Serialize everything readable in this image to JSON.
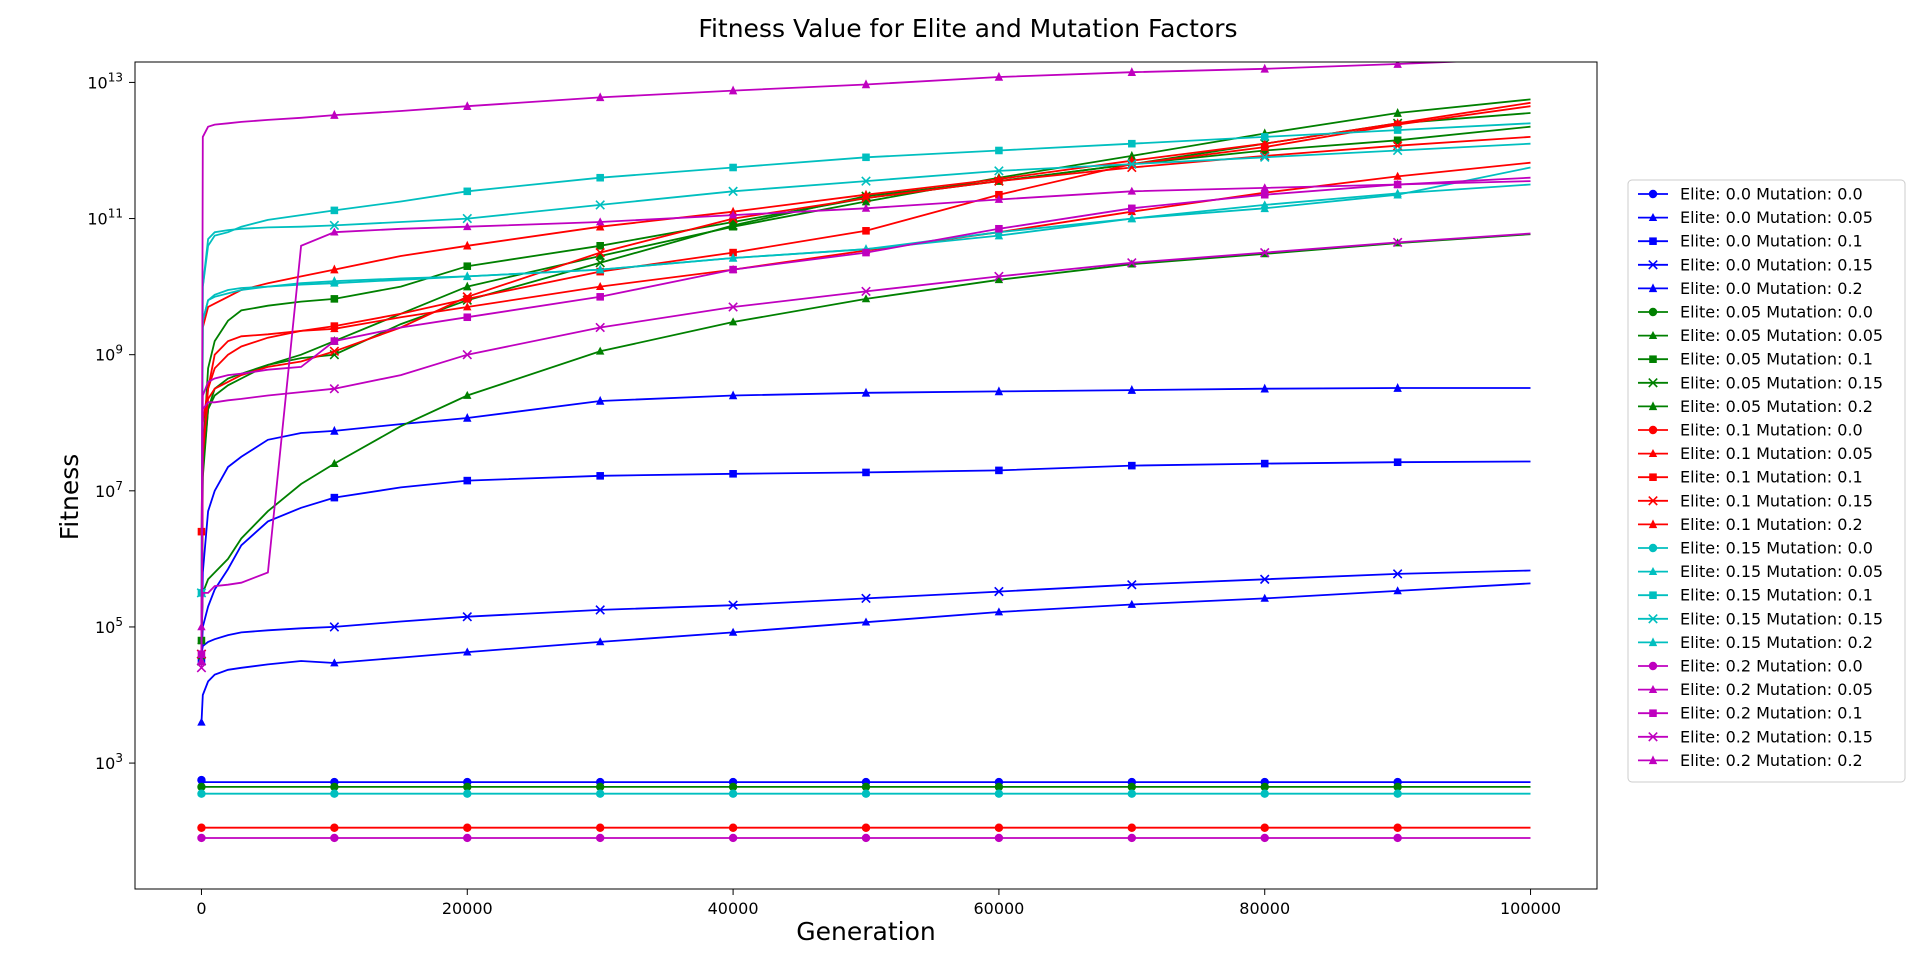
{
  "chart_data": {
    "type": "line",
    "title": "Fitness Value for Elite and Mutation Factors",
    "xlabel": "Generation",
    "ylabel": "Fitness",
    "yscale": "log",
    "xlim": [
      -5000,
      105000
    ],
    "ylim_log10": [
      1.15,
      13.3
    ],
    "x_ticks": [
      0,
      20000,
      40000,
      60000,
      80000,
      100000
    ],
    "x_tick_labels": [
      "0",
      "20000",
      "40000",
      "60000",
      "80000",
      "100000"
    ],
    "y_ticks_log10": [
      3,
      5,
      7,
      9,
      11,
      13
    ],
    "y_tick_labels": [
      {
        "base": "10",
        "exp": "3"
      },
      {
        "base": "10",
        "exp": "5"
      },
      {
        "base": "10",
        "exp": "7"
      },
      {
        "base": "10",
        "exp": "9"
      },
      {
        "base": "10",
        "exp": "11"
      },
      {
        "base": "10",
        "exp": "13"
      }
    ],
    "grid": false,
    "legend_position": "right, outside plot",
    "x": [
      0,
      100,
      500,
      1000,
      2000,
      3000,
      5000,
      7500,
      10000,
      15000,
      20000,
      30000,
      40000,
      50000,
      60000,
      70000,
      80000,
      90000,
      100000
    ],
    "series": [
      {
        "name": "Elite: 0.0 Mutation: 0.0",
        "color": "#0000ff",
        "marker": "circle",
        "log10": [
          2.75,
          2.72,
          2.72,
          2.72,
          2.72,
          2.72,
          2.72,
          2.72,
          2.72,
          2.72,
          2.72,
          2.72,
          2.72,
          2.72,
          2.72,
          2.72,
          2.72,
          2.72,
          2.72
        ]
      },
      {
        "name": "Elite: 0.0 Mutation: 0.05",
        "color": "#0000ff",
        "marker": "triangle",
        "log10": [
          3.6,
          4.0,
          4.2,
          4.3,
          4.37,
          4.4,
          4.45,
          4.5,
          4.47,
          4.55,
          4.63,
          4.78,
          4.92,
          5.07,
          5.22,
          5.33,
          5.42,
          5.53,
          5.64
        ]
      },
      {
        "name": "Elite: 0.0 Mutation: 0.1",
        "color": "#0000ff",
        "marker": "square",
        "log10": [
          4.5,
          5.0,
          5.3,
          5.55,
          5.85,
          6.2,
          6.55,
          6.75,
          6.9,
          7.05,
          7.15,
          7.22,
          7.25,
          7.27,
          7.3,
          7.37,
          7.4,
          7.42,
          7.43
        ]
      },
      {
        "name": "Elite: 0.0 Mutation: 0.15",
        "color": "#0000ff",
        "marker": "x",
        "log10": [
          4.6,
          4.72,
          4.78,
          4.82,
          4.88,
          4.92,
          4.95,
          4.98,
          5.0,
          5.08,
          5.15,
          5.25,
          5.32,
          5.42,
          5.52,
          5.62,
          5.7,
          5.78,
          5.83
        ]
      },
      {
        "name": "Elite: 0.0 Mutation: 0.2",
        "color": "#0000ff",
        "marker": "star",
        "log10": [
          4.5,
          5.8,
          6.7,
          7.0,
          7.35,
          7.5,
          7.75,
          7.85,
          7.88,
          7.98,
          8.07,
          8.32,
          8.4,
          8.44,
          8.46,
          8.48,
          8.5,
          8.51,
          8.51
        ]
      },
      {
        "name": "Elite: 0.05 Mutation: 0.0",
        "color": "#008000",
        "marker": "circle",
        "log10": [
          2.65,
          2.65,
          2.65,
          2.65,
          2.65,
          2.65,
          2.65,
          2.65,
          2.65,
          2.65,
          2.65,
          2.65,
          2.65,
          2.65,
          2.65,
          2.65,
          2.65,
          2.65,
          2.65
        ]
      },
      {
        "name": "Elite: 0.05 Mutation: 0.05",
        "color": "#008000",
        "marker": "triangle",
        "log10": [
          4.8,
          5.5,
          5.7,
          5.8,
          6.0,
          6.3,
          6.7,
          7.1,
          7.4,
          7.95,
          8.4,
          9.05,
          9.48,
          9.82,
          10.1,
          10.33,
          10.48,
          10.64,
          10.77
        ]
      },
      {
        "name": "Elite: 0.05 Mutation: 0.1",
        "color": "#008000",
        "marker": "square",
        "log10": [
          4.8,
          7.5,
          8.8,
          9.2,
          9.5,
          9.65,
          9.72,
          9.78,
          9.82,
          10.0,
          10.3,
          10.6,
          10.95,
          11.3,
          11.55,
          11.8,
          12.0,
          12.15,
          12.35
        ]
      },
      {
        "name": "Elite: 0.05 Mutation: 0.15",
        "color": "#008000",
        "marker": "x",
        "log10": [
          4.5,
          7.2,
          8.2,
          8.5,
          8.65,
          8.72,
          8.85,
          8.95,
          9.0,
          9.45,
          9.8,
          10.35,
          10.9,
          11.33,
          11.55,
          11.8,
          12.1,
          12.4,
          12.55
        ]
      },
      {
        "name": "Elite: 0.05 Mutation: 0.2",
        "color": "#008000",
        "marker": "star",
        "log10": [
          4.5,
          7.3,
          8.2,
          8.4,
          8.55,
          8.65,
          8.85,
          9.0,
          9.2,
          9.6,
          10.0,
          10.45,
          10.88,
          11.25,
          11.6,
          11.92,
          12.25,
          12.55,
          12.75
        ]
      },
      {
        "name": "Elite: 0.1 Mutation: 0.0",
        "color": "#ff0000",
        "marker": "circle",
        "log10": [
          2.05,
          2.05,
          2.05,
          2.05,
          2.05,
          2.05,
          2.05,
          2.05,
          2.05,
          2.05,
          2.05,
          2.05,
          2.05,
          2.05,
          2.05,
          2.05,
          2.05,
          2.05,
          2.05
        ]
      },
      {
        "name": "Elite: 0.1 Mutation: 0.05",
        "color": "#ff0000",
        "marker": "triangle",
        "log10": [
          4.6,
          7.5,
          8.5,
          9.0,
          9.2,
          9.27,
          9.3,
          9.35,
          9.38,
          9.55,
          9.7,
          10.0,
          10.25,
          10.53,
          10.8,
          11.1,
          11.38,
          11.62,
          11.82
        ]
      },
      {
        "name": "Elite: 0.1 Mutation: 0.1",
        "color": "#ff0000",
        "marker": "square",
        "log10": [
          6.4,
          8.0,
          8.5,
          8.8,
          9.0,
          9.12,
          9.25,
          9.35,
          9.42,
          9.6,
          9.82,
          10.22,
          10.5,
          10.82,
          11.35,
          11.8,
          12.05,
          12.38,
          12.65
        ]
      },
      {
        "name": "Elite: 0.1 Mutation: 0.15",
        "color": "#ff0000",
        "marker": "x",
        "log10": [
          4.6,
          7.6,
          8.35,
          8.5,
          8.6,
          8.7,
          8.82,
          8.9,
          9.05,
          9.4,
          9.85,
          10.5,
          11.0,
          11.3,
          11.55,
          11.75,
          11.92,
          12.07,
          12.2
        ]
      },
      {
        "name": "Elite: 0.1 Mutation: 0.2",
        "color": "#ff0000",
        "marker": "star",
        "log10": [
          4.5,
          9.4,
          9.7,
          9.75,
          9.85,
          9.95,
          10.05,
          10.15,
          10.25,
          10.45,
          10.6,
          10.88,
          11.1,
          11.35,
          11.58,
          11.85,
          12.1,
          12.4,
          12.7
        ]
      },
      {
        "name": "Elite: 0.15 Mutation: 0.0",
        "color": "#00bfbf",
        "marker": "circle",
        "log10": [
          2.55,
          2.55,
          2.55,
          2.55,
          2.55,
          2.55,
          2.55,
          2.55,
          2.55,
          2.55,
          2.55,
          2.55,
          2.55,
          2.55,
          2.55,
          2.55,
          2.55,
          2.55,
          2.55
        ]
      },
      {
        "name": "Elite: 0.15 Mutation: 0.05",
        "color": "#00bfbf",
        "marker": "triangle",
        "log10": [
          4.5,
          9.5,
          9.8,
          9.85,
          9.9,
          9.95,
          10.0,
          10.03,
          10.05,
          10.1,
          10.15,
          10.25,
          10.42,
          10.55,
          10.8,
          11.0,
          11.2,
          11.37,
          11.5
        ]
      },
      {
        "name": "Elite: 0.15 Mutation: 0.1",
        "color": "#00bfbf",
        "marker": "square",
        "log10": [
          5.5,
          10.0,
          10.6,
          10.75,
          10.8,
          10.88,
          10.98,
          11.05,
          11.12,
          11.25,
          11.4,
          11.6,
          11.75,
          11.9,
          12.0,
          12.1,
          12.2,
          12.3,
          12.4
        ]
      },
      {
        "name": "Elite: 0.15 Mutation: 0.15",
        "color": "#00bfbf",
        "marker": "x",
        "log10": [
          5.5,
          10.0,
          10.7,
          10.8,
          10.83,
          10.85,
          10.87,
          10.88,
          10.9,
          10.95,
          11.0,
          11.2,
          11.4,
          11.55,
          11.7,
          11.8,
          11.9,
          12.0,
          12.1
        ]
      },
      {
        "name": "Elite: 0.15 Mutation: 0.2",
        "color": "#00bfbf",
        "marker": "star",
        "log10": [
          4.5,
          9.5,
          9.8,
          9.88,
          9.95,
          9.98,
          10.0,
          10.05,
          10.08,
          10.12,
          10.15,
          10.25,
          10.42,
          10.55,
          10.75,
          11.0,
          11.15,
          11.35,
          11.75
        ]
      },
      {
        "name": "Elite: 0.2 Mutation: 0.0",
        "color": "#bf00bf",
        "marker": "circle",
        "log10": [
          1.9,
          1.9,
          1.9,
          1.9,
          1.9,
          1.9,
          1.9,
          1.9,
          1.9,
          1.9,
          1.9,
          1.9,
          1.9,
          1.9,
          1.9,
          1.9,
          1.9,
          1.9,
          1.9
        ]
      },
      {
        "name": "Elite: 0.2 Mutation: 0.05",
        "color": "#bf00bf",
        "marker": "triangle",
        "log10": [
          5.0,
          5.5,
          5.5,
          5.6,
          5.62,
          5.65,
          5.8,
          10.6,
          10.8,
          10.85,
          10.88,
          10.95,
          11.05,
          11.15,
          11.28,
          11.4,
          11.45,
          11.5,
          11.55
        ]
      },
      {
        "name": "Elite: 0.2 Mutation: 0.1",
        "color": "#bf00bf",
        "marker": "square",
        "log10": [
          4.6,
          8.4,
          8.6,
          8.65,
          8.7,
          8.72,
          8.78,
          8.82,
          9.2,
          9.4,
          9.55,
          9.85,
          10.25,
          10.5,
          10.85,
          11.15,
          11.35,
          11.5,
          11.6
        ]
      },
      {
        "name": "Elite: 0.2 Mutation: 0.15",
        "color": "#bf00bf",
        "marker": "x",
        "log10": [
          4.4,
          8.2,
          8.3,
          8.3,
          8.33,
          8.35,
          8.4,
          8.45,
          8.5,
          8.7,
          9.0,
          9.4,
          9.7,
          9.93,
          10.15,
          10.35,
          10.5,
          10.65,
          10.78
        ]
      },
      {
        "name": "Elite: 0.2 Mutation: 0.2",
        "color": "#bf00bf",
        "marker": "star",
        "log10": [
          4.5,
          12.2,
          12.35,
          12.38,
          12.4,
          12.42,
          12.45,
          12.48,
          12.52,
          12.58,
          12.65,
          12.78,
          12.88,
          12.97,
          13.08,
          13.15,
          13.2,
          13.27,
          13.35
        ]
      }
    ]
  }
}
